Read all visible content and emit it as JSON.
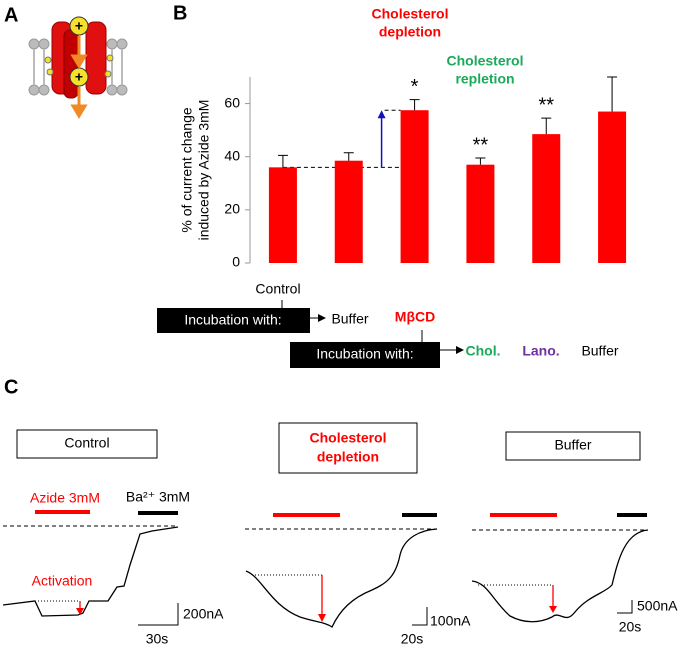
{
  "panel_labels": [
    "A",
    "B",
    "C"
  ],
  "chart_data": {
    "type": "bar",
    "ylabel": [
      "% of current change",
      "induced by Azide 3mM"
    ],
    "categories": [
      null,
      null,
      null,
      null,
      null,
      null
    ],
    "values": [
      36,
      38.5,
      57.5,
      37,
      48.5,
      57
    ],
    "errors": [
      4.5,
      3,
      4,
      2.5,
      6,
      13
    ],
    "significance": [
      null,
      null,
      "*",
      "**",
      "**",
      null
    ],
    "color": "#ff0000",
    "ylim": [
      0,
      70
    ],
    "yticks": [
      0,
      20,
      40,
      60
    ],
    "grid": false
  },
  "annotations": {
    "depletion": [
      "Cholesterol",
      "depletion"
    ],
    "repletion": [
      "Cholesterol",
      "repletion"
    ],
    "control": "Control",
    "buffer_1": "Buffer",
    "mbcd": "MβCD",
    "incubation_1": "Incubation with:",
    "incubation_2": "Incubation with:",
    "chol": "Chol.",
    "lano": "Lano.",
    "buffer_2": "Buffer"
  },
  "panel_c": {
    "boxes": [
      "Control",
      [
        "Cholesterol",
        "depletion"
      ],
      "Buffer"
    ],
    "azide": "Azide 3mM",
    "barium": "Ba²⁺ 3mM",
    "activation": "Activation",
    "scales": [
      [
        "200nA",
        "30s"
      ],
      [
        "100nA",
        "20s"
      ],
      [
        "500nA",
        "20s"
      ]
    ]
  }
}
